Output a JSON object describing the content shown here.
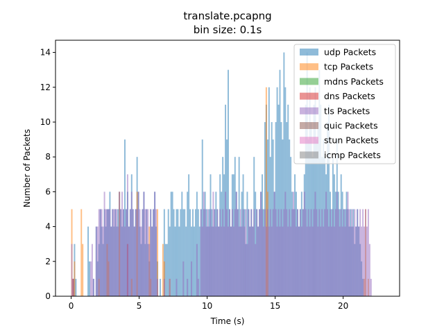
{
  "chart_data": {
    "type": "histogram",
    "title": "translate.pcapng",
    "subtitle": "bin size: 0.1s",
    "xlabel": "Time (s)",
    "ylabel": "Number of Packets",
    "xlim": [
      -1.15,
      24.15
    ],
    "ylim": [
      0,
      14.7
    ],
    "bin_size": 0.1,
    "xticks": [
      0,
      5,
      10,
      15,
      20
    ],
    "yticks": [
      0,
      2,
      4,
      6,
      8,
      10,
      12,
      14
    ],
    "grid": false,
    "legend_position": "top-right",
    "series": [
      {
        "name": "udp Packets",
        "color": "#1f77b4",
        "start": 0.0,
        "values": [
          0,
          1,
          3,
          1,
          0,
          0,
          0,
          0,
          0,
          0,
          0,
          0,
          4,
          2,
          0,
          0,
          1,
          0,
          4,
          2,
          3,
          5,
          4,
          3,
          5,
          4,
          5,
          5,
          6,
          4,
          5,
          4,
          5,
          4,
          5,
          6,
          5,
          4,
          5,
          9,
          5,
          6,
          4,
          5,
          7,
          5,
          4,
          5,
          8,
          6,
          4,
          3,
          5,
          6,
          3,
          5,
          3,
          2,
          5,
          4,
          5,
          6,
          4,
          2,
          0,
          1,
          0,
          0,
          5,
          3,
          3,
          5,
          4,
          6,
          6,
          5,
          4,
          5,
          5,
          4,
          5,
          6,
          5,
          5,
          4,
          6,
          7,
          5,
          4,
          5,
          4,
          5,
          6,
          5,
          4,
          5,
          9,
          5,
          6,
          5,
          4,
          5,
          7,
          5,
          4,
          5,
          6,
          5,
          4,
          7,
          6,
          8,
          7,
          11,
          9,
          13,
          5,
          4,
          7,
          7,
          8,
          6,
          5,
          8,
          4,
          6,
          7,
          5,
          3,
          6,
          5,
          4,
          5,
          4,
          8,
          6,
          5,
          4,
          5,
          6,
          7,
          5,
          10,
          11,
          9,
          12,
          8,
          10,
          9,
          6,
          10,
          12,
          11,
          13,
          10,
          9,
          14,
          12,
          10,
          11,
          9,
          8,
          6,
          5,
          7,
          6,
          5,
          4,
          5,
          6,
          5,
          7,
          11,
          14,
          9,
          12,
          10,
          8,
          11,
          12,
          9,
          10,
          13,
          11,
          8,
          9,
          8,
          7,
          10,
          11,
          6,
          5,
          8,
          7,
          6,
          9,
          6,
          5,
          7,
          6,
          5,
          5,
          6,
          5,
          4,
          5,
          4,
          5,
          3,
          4,
          5,
          4,
          3,
          2,
          1,
          0,
          0
        ]
      },
      {
        "name": "tcp Packets",
        "color": "#ff7f0e",
        "start": 0.0,
        "values": [
          5,
          1,
          2,
          0,
          0,
          0,
          0,
          5,
          3,
          0,
          0,
          0,
          0,
          0,
          0,
          0,
          0,
          0,
          0,
          0,
          1,
          0,
          0,
          0,
          0,
          0,
          3,
          2,
          0,
          0,
          0,
          0,
          0,
          0,
          0,
          6,
          0,
          0,
          0,
          0,
          0,
          0,
          0,
          0,
          1,
          0,
          0,
          0,
          6,
          0,
          0,
          0,
          0,
          0,
          0,
          0,
          0,
          4,
          1,
          0,
          0,
          0,
          0,
          5,
          0,
          0,
          0,
          3,
          2,
          0,
          0,
          0,
          1,
          0,
          0,
          0,
          0,
          0,
          0,
          0,
          0,
          0,
          0,
          0,
          0,
          0,
          0,
          0,
          0,
          0,
          0,
          0,
          0,
          0,
          0,
          0,
          0,
          0,
          0,
          0,
          0,
          0,
          0,
          0,
          0,
          0,
          0,
          0,
          0,
          0,
          0,
          0,
          0,
          0,
          0,
          0,
          0,
          0,
          0,
          0,
          0,
          0,
          0,
          0,
          0,
          0,
          0,
          0,
          0,
          0,
          0,
          0,
          0,
          0,
          0,
          0,
          0,
          0,
          0,
          0,
          0,
          0,
          0,
          12,
          6,
          0,
          0,
          0,
          0,
          0,
          0,
          0,
          0,
          0,
          0,
          0,
          0,
          0,
          0,
          0,
          0,
          0,
          0,
          0,
          0,
          0,
          0,
          0,
          0,
          0,
          0,
          0,
          0,
          0,
          0,
          0,
          0,
          0,
          0,
          0,
          0,
          0,
          0,
          0,
          0,
          0,
          0,
          0,
          0,
          0,
          0,
          0,
          0,
          0,
          0,
          0,
          0,
          0,
          0,
          0,
          0,
          0,
          0,
          0,
          0,
          0,
          0,
          0,
          0,
          0,
          0,
          0,
          0,
          0,
          0,
          1,
          5,
          0,
          1,
          0
        ]
      },
      {
        "name": "mdns Packets",
        "color": "#2ca02c",
        "start": 0.0,
        "values": []
      },
      {
        "name": "dns Packets",
        "color": "#d62728",
        "start": 0.0,
        "values": [
          0,
          1,
          0,
          0,
          0,
          0,
          0,
          0,
          0,
          0,
          0,
          0,
          0,
          0,
          0,
          0,
          0,
          0,
          0,
          0,
          0,
          0,
          0,
          0,
          0,
          0,
          0,
          0,
          0,
          0,
          0,
          0,
          0,
          0,
          0,
          0,
          0,
          0,
          0,
          0,
          0,
          3,
          0,
          0,
          0,
          0,
          0,
          0,
          0,
          0,
          0,
          0,
          0,
          0,
          0,
          0,
          0,
          0,
          0,
          0,
          0,
          0,
          0,
          0,
          0,
          0,
          0,
          0,
          0,
          0,
          0,
          0,
          0,
          0,
          0,
          0,
          0,
          0,
          0,
          0,
          0,
          0,
          0,
          0,
          0,
          0,
          0,
          0,
          0,
          0,
          0,
          0,
          0,
          0,
          0,
          0,
          0,
          0,
          0,
          0,
          0,
          0,
          0,
          0,
          0,
          0,
          0,
          0,
          0,
          0,
          0,
          0,
          0,
          0,
          0,
          0,
          0,
          0,
          0,
          0,
          0,
          0,
          0,
          0,
          0,
          0,
          0,
          0,
          0,
          0,
          0,
          0,
          0,
          0,
          0,
          0,
          0,
          0,
          0,
          0,
          0,
          0,
          0,
          0,
          0,
          0,
          0,
          0,
          0,
          0,
          0,
          0,
          0,
          0,
          0,
          0,
          0,
          0,
          0,
          0,
          0,
          0,
          0,
          0,
          0,
          0,
          0,
          0,
          0,
          0,
          0,
          0,
          0,
          0,
          0,
          0,
          0,
          0,
          0,
          0,
          0,
          0,
          0,
          0,
          0,
          0,
          0,
          0,
          0,
          0,
          0,
          0,
          0,
          0,
          0,
          0,
          0,
          0,
          0,
          0,
          0,
          0,
          0,
          0,
          0,
          0,
          0,
          0,
          0,
          0,
          0,
          0,
          0,
          0,
          0,
          0,
          0,
          0,
          0,
          0,
          0,
          0,
          0,
          0,
          0,
          0
        ]
      },
      {
        "name": "tls Packets",
        "color": "#9467bd",
        "start": 0.0,
        "values": [
          3,
          1,
          0,
          0,
          0,
          0,
          0,
          0,
          0,
          0,
          0,
          0,
          0,
          0,
          2,
          3,
          1,
          0,
          4,
          4,
          5,
          5,
          5,
          4,
          6,
          5,
          5,
          5,
          5,
          4,
          5,
          5,
          5,
          5,
          4,
          6,
          5,
          6,
          5,
          4,
          5,
          7,
          4,
          5,
          6,
          5,
          4,
          5,
          5,
          6,
          5,
          4,
          5,
          6,
          5,
          5,
          5,
          3,
          5,
          4,
          5,
          6,
          5,
          1,
          0,
          0,
          0,
          0,
          1,
          0,
          0,
          0,
          1,
          0,
          0,
          0,
          0,
          1,
          0,
          0,
          0,
          0,
          2,
          0,
          0,
          1,
          0,
          0,
          2,
          0,
          0,
          0,
          3,
          1,
          0,
          5,
          4,
          6,
          5,
          4,
          5,
          4,
          5,
          4,
          6,
          5,
          4,
          5,
          4,
          5,
          4,
          5,
          4,
          6,
          5,
          4,
          5,
          4,
          5,
          4,
          5,
          6,
          5,
          4,
          5,
          4,
          5,
          4,
          5,
          3,
          5,
          4,
          5,
          4,
          5,
          3,
          5,
          4,
          5,
          6,
          5,
          4,
          5,
          4,
          5,
          4,
          5,
          4,
          5,
          6,
          5,
          4,
          5,
          4,
          5,
          4,
          5,
          6,
          5,
          4,
          5,
          4,
          5,
          6,
          5,
          4,
          5,
          4,
          5,
          4,
          5,
          6,
          5,
          4,
          5,
          4,
          5,
          4,
          5,
          6,
          5,
          4,
          5,
          4,
          5,
          4,
          5,
          6,
          5,
          4,
          5,
          4,
          5,
          4,
          5,
          6,
          5,
          4,
          5,
          4,
          5,
          4,
          5,
          6,
          5,
          4,
          5,
          4,
          5,
          4,
          5,
          4,
          5,
          4,
          5,
          4,
          5,
          4,
          5,
          3,
          1,
          0
        ]
      },
      {
        "name": "quic Packets",
        "color": "#8c564b",
        "start": 0.0,
        "values": []
      },
      {
        "name": "stun Packets",
        "color": "#e377c2",
        "start": 0.0,
        "values": []
      },
      {
        "name": "icmp Packets",
        "color": "#7f7f7f",
        "start": 0.0,
        "values": []
      }
    ]
  }
}
